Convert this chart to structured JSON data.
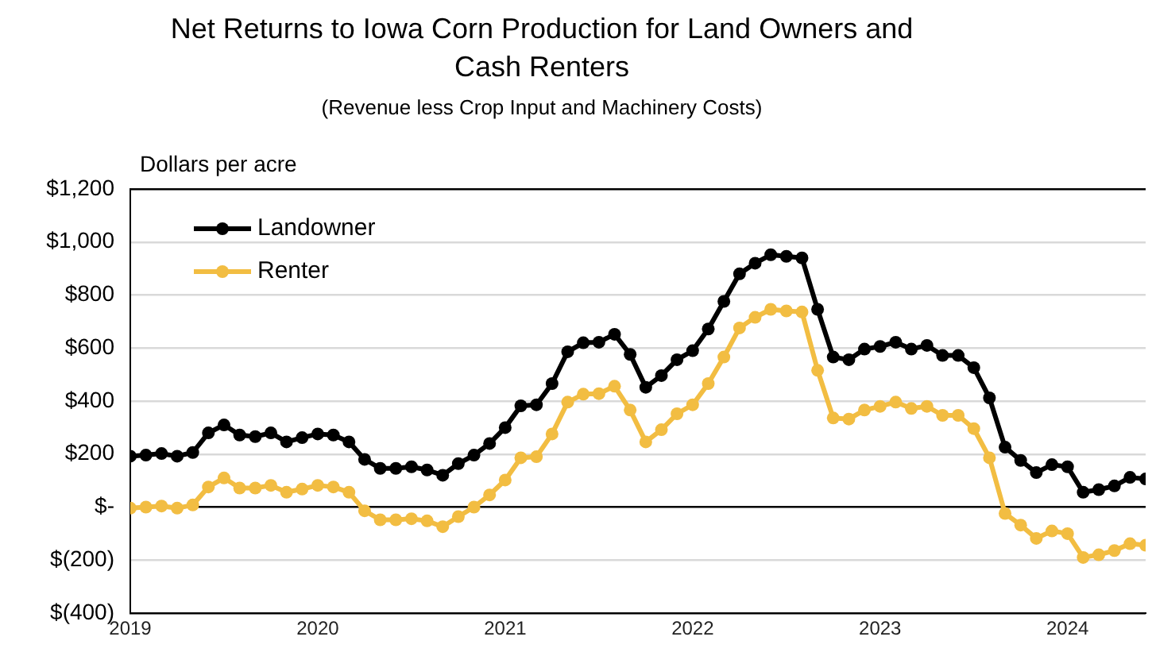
{
  "chart_data": {
    "type": "line",
    "title": "Net Returns to Iowa Corn Production for Land Owners and Cash Renters",
    "subtitle": "(Revenue less Crop Input and Machinery Costs)",
    "ylabel": "Dollars per acre",
    "x": [
      "2019-01",
      "2019-02",
      "2019-03",
      "2019-04",
      "2019-05",
      "2019-06",
      "2019-07",
      "2019-08",
      "2019-09",
      "2019-10",
      "2019-11",
      "2019-12",
      "2020-01",
      "2020-02",
      "2020-03",
      "2020-04",
      "2020-05",
      "2020-06",
      "2020-07",
      "2020-08",
      "2020-09",
      "2020-10",
      "2020-11",
      "2020-12",
      "2021-01",
      "2021-02",
      "2021-03",
      "2021-04",
      "2021-05",
      "2021-06",
      "2021-07",
      "2021-08",
      "2021-09",
      "2021-10",
      "2021-11",
      "2021-12",
      "2022-01",
      "2022-02",
      "2022-03",
      "2022-04",
      "2022-05",
      "2022-06",
      "2022-07",
      "2022-08",
      "2022-09",
      "2022-10",
      "2022-11",
      "2022-12",
      "2023-01",
      "2023-02",
      "2023-03",
      "2023-04",
      "2023-05",
      "2023-06",
      "2023-07",
      "2023-08",
      "2023-09",
      "2023-10",
      "2023-11",
      "2023-12",
      "2024-01",
      "2024-02",
      "2024-03",
      "2024-04",
      "2024-05",
      "2024-06"
    ],
    "series": [
      {
        "name": "Landowner",
        "color": "#000000",
        "values": [
          192,
          196,
          202,
          192,
          206,
          280,
          310,
          272,
          266,
          280,
          246,
          262,
          276,
          272,
          246,
          180,
          146,
          146,
          152,
          140,
          120,
          164,
          196,
          240,
          300,
          382,
          386,
          466,
          586,
          620,
          622,
          652,
          576,
          452,
          496,
          556,
          590,
          672,
          776,
          880,
          920,
          952,
          946,
          940,
          746,
          566,
          556,
          596,
          606,
          622,
          596,
          610,
          572,
          572,
          526,
          412,
          226,
          176,
          130,
          160,
          152,
          56,
          66,
          80,
          112,
          106
        ]
      },
      {
        "name": "Renter",
        "color": "#f2bd42",
        "values": [
          -4,
          0,
          4,
          -4,
          8,
          76,
          110,
          72,
          72,
          82,
          56,
          68,
          82,
          76,
          56,
          -14,
          -48,
          -48,
          -44,
          -52,
          -74,
          -36,
          0,
          46,
          102,
          186,
          190,
          276,
          396,
          426,
          428,
          456,
          366,
          246,
          292,
          352,
          386,
          466,
          566,
          676,
          716,
          746,
          740,
          736,
          516,
          336,
          332,
          366,
          380,
          396,
          372,
          380,
          346,
          346,
          296,
          186,
          -24,
          -68,
          -118,
          -90,
          -100,
          -190,
          -180,
          -164,
          -138,
          -144
        ]
      }
    ],
    "xlim": [
      "2019-01",
      "2024-06"
    ],
    "xticks": [
      "2019",
      "2020",
      "2021",
      "2022",
      "2023",
      "2024"
    ],
    "ylim": [
      -400,
      1200
    ],
    "yticks": [
      {
        "value": -400,
        "label": "$(400)"
      },
      {
        "value": -200,
        "label": "$(200)"
      },
      {
        "value": 0,
        "label": "$-"
      },
      {
        "value": 200,
        "label": "$200"
      },
      {
        "value": 400,
        "label": "$400"
      },
      {
        "value": 600,
        "label": "$600"
      },
      {
        "value": 800,
        "label": "$800"
      },
      {
        "value": 1000,
        "label": "$1,000"
      },
      {
        "value": 1200,
        "label": "$1,200"
      }
    ],
    "grid": "y",
    "legend": "top left",
    "marker": "circle",
    "line_style": "solid"
  }
}
